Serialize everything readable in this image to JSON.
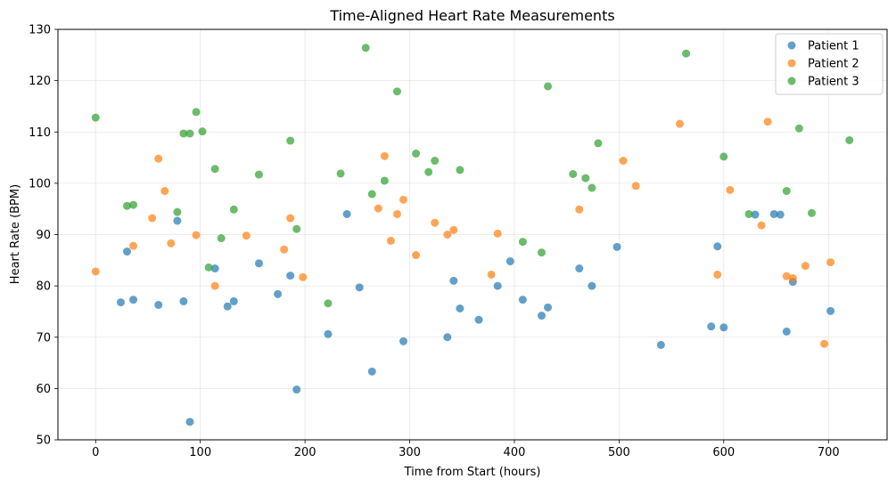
{
  "chart_data": {
    "type": "scatter",
    "title": "Time-Aligned Heart Rate Measurements",
    "xlabel": "Time from Start (hours)",
    "ylabel": "Heart Rate (BPM)",
    "xlim": [
      -36,
      756
    ],
    "ylim": [
      50,
      130
    ],
    "xticks": [
      0,
      100,
      200,
      300,
      400,
      500,
      600,
      700
    ],
    "yticks": [
      50,
      60,
      70,
      80,
      90,
      100,
      110,
      120,
      130
    ],
    "grid": true,
    "legend_position": "top-right",
    "series": [
      {
        "name": "Patient 1",
        "color": "#1f77b4",
        "points": [
          [
            24,
            76.8
          ],
          [
            30,
            86.7
          ],
          [
            36,
            77.3
          ],
          [
            60,
            76.3
          ],
          [
            78,
            92.7
          ],
          [
            84,
            77
          ],
          [
            90,
            53.5
          ],
          [
            114,
            83.4
          ],
          [
            126,
            76
          ],
          [
            132,
            77
          ],
          [
            156,
            84.4
          ],
          [
            174,
            78.4
          ],
          [
            186,
            82
          ],
          [
            192,
            59.8
          ],
          [
            222,
            70.6
          ],
          [
            240,
            94
          ],
          [
            252,
            79.7
          ],
          [
            264,
            63.3
          ],
          [
            294,
            69.2
          ],
          [
            336,
            70
          ],
          [
            342,
            81
          ],
          [
            348,
            75.6
          ],
          [
            366,
            73.4
          ],
          [
            384,
            80
          ],
          [
            396,
            84.8
          ],
          [
            408,
            77.3
          ],
          [
            426,
            74.2
          ],
          [
            432,
            75.8
          ],
          [
            462,
            83.4
          ],
          [
            474,
            80
          ],
          [
            498,
            87.6
          ],
          [
            540,
            68.5
          ],
          [
            588,
            72.1
          ],
          [
            594,
            87.7
          ],
          [
            600,
            71.9
          ],
          [
            630,
            93.9
          ],
          [
            648,
            94
          ],
          [
            654,
            93.9
          ],
          [
            660,
            71.1
          ],
          [
            666,
            80.8
          ],
          [
            702,
            75.1
          ]
        ]
      },
      {
        "name": "Patient 2",
        "color": "#ff7f0e",
        "points": [
          [
            0,
            82.8
          ],
          [
            36,
            87.8
          ],
          [
            54,
            93.2
          ],
          [
            60,
            104.8
          ],
          [
            66,
            98.5
          ],
          [
            72,
            88.3
          ],
          [
            96,
            89.9
          ],
          [
            114,
            80
          ],
          [
            144,
            89.8
          ],
          [
            180,
            87.1
          ],
          [
            186,
            93.2
          ],
          [
            198,
            81.7
          ],
          [
            270,
            95.1
          ],
          [
            276,
            105.3
          ],
          [
            282,
            88.8
          ],
          [
            288,
            94
          ],
          [
            294,
            96.8
          ],
          [
            306,
            86
          ],
          [
            324,
            92.3
          ],
          [
            336,
            90
          ],
          [
            342,
            90.9
          ],
          [
            378,
            82.2
          ],
          [
            384,
            90.2
          ],
          [
            462,
            94.9
          ],
          [
            504,
            104.4
          ],
          [
            516,
            99.5
          ],
          [
            558,
            111.6
          ],
          [
            594,
            82.2
          ],
          [
            606,
            98.7
          ],
          [
            636,
            91.8
          ],
          [
            642,
            112
          ],
          [
            660,
            81.9
          ],
          [
            666,
            81.5
          ],
          [
            678,
            83.9
          ],
          [
            696,
            68.7
          ],
          [
            702,
            84.6
          ]
        ]
      },
      {
        "name": "Patient 3",
        "color": "#2ca02c",
        "points": [
          [
            0,
            112.8
          ],
          [
            30,
            95.6
          ],
          [
            36,
            95.8
          ],
          [
            78,
            94.4
          ],
          [
            84,
            109.7
          ],
          [
            90,
            109.7
          ],
          [
            96,
            113.9
          ],
          [
            102,
            110.1
          ],
          [
            108,
            83.6
          ],
          [
            114,
            102.8
          ],
          [
            120,
            89.3
          ],
          [
            132,
            94.9
          ],
          [
            156,
            101.7
          ],
          [
            186,
            108.3
          ],
          [
            192,
            91.1
          ],
          [
            222,
            76.6
          ],
          [
            234,
            101.9
          ],
          [
            258,
            126.4
          ],
          [
            264,
            97.9
          ],
          [
            276,
            100.5
          ],
          [
            288,
            117.9
          ],
          [
            306,
            105.8
          ],
          [
            318,
            102.2
          ],
          [
            324,
            104.4
          ],
          [
            348,
            102.6
          ],
          [
            408,
            88.6
          ],
          [
            426,
            86.5
          ],
          [
            432,
            118.9
          ],
          [
            456,
            101.8
          ],
          [
            468,
            101
          ],
          [
            474,
            99.1
          ],
          [
            480,
            107.8
          ],
          [
            564,
            125.3
          ],
          [
            600,
            105.2
          ],
          [
            624,
            94
          ],
          [
            660,
            98.5
          ],
          [
            672,
            110.7
          ],
          [
            684,
            94.2
          ],
          [
            720,
            108.4
          ]
        ]
      }
    ]
  }
}
